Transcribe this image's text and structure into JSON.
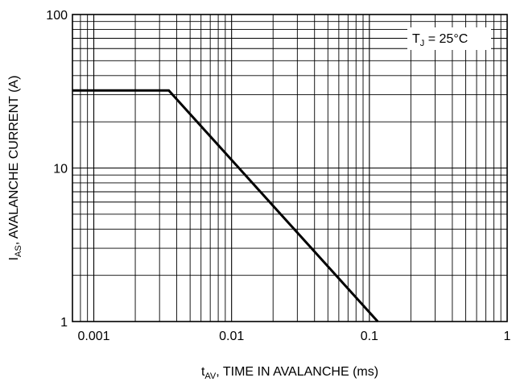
{
  "chart_data": {
    "type": "line",
    "scale": {
      "x": "log",
      "y": "log"
    },
    "xlim": [
      0.0007,
      1
    ],
    "ylim": [
      1,
      100
    ],
    "x_ticks": [
      {
        "value": 0.001,
        "label": "0.001"
      },
      {
        "value": 0.01,
        "label": "0.01"
      },
      {
        "value": 0.1,
        "label": "0.1"
      },
      {
        "value": 1,
        "label": "1"
      }
    ],
    "y_ticks": [
      {
        "value": 1,
        "label": "1"
      },
      {
        "value": 10,
        "label": "10"
      },
      {
        "value": 100,
        "label": "100"
      }
    ],
    "xlabel": {
      "main": "t",
      "sub": "AV",
      "rest": ", TIME IN AVALANCHE (ms)"
    },
    "ylabel": {
      "main": "I",
      "sub": "AS",
      "rest": ", AVALANCHE CURRENT (A)"
    },
    "annotation": {
      "main": "T",
      "sub": "J",
      "rest": " = 25°C"
    },
    "grid": true,
    "series": [
      {
        "x": [
          0.0007,
          0.0035,
          0.115
        ],
        "y": [
          32,
          32,
          1
        ]
      }
    ]
  }
}
